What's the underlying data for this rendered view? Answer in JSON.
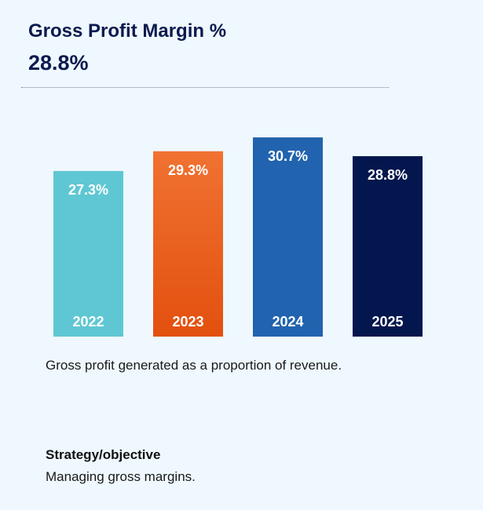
{
  "header": {
    "title": "Gross Profit Margin %",
    "value": "28.8%"
  },
  "chart_data": {
    "type": "bar",
    "categories": [
      "2022",
      "2023",
      "2024",
      "2025"
    ],
    "values": [
      27.3,
      29.3,
      30.7,
      28.8
    ],
    "value_labels": [
      "27.3%",
      "29.3%",
      "30.7%",
      "28.8%"
    ],
    "colors": [
      "#5fc7d3",
      "#ef6a2a",
      "#2163ae",
      "#03174e"
    ],
    "title": "",
    "xlabel": "",
    "ylabel": "",
    "grid": false,
    "legend": "none"
  },
  "description": "Gross profit generated as a proportion of revenue.",
  "strategy": {
    "heading": "Strategy/objective",
    "text": "Managing gross margins."
  }
}
